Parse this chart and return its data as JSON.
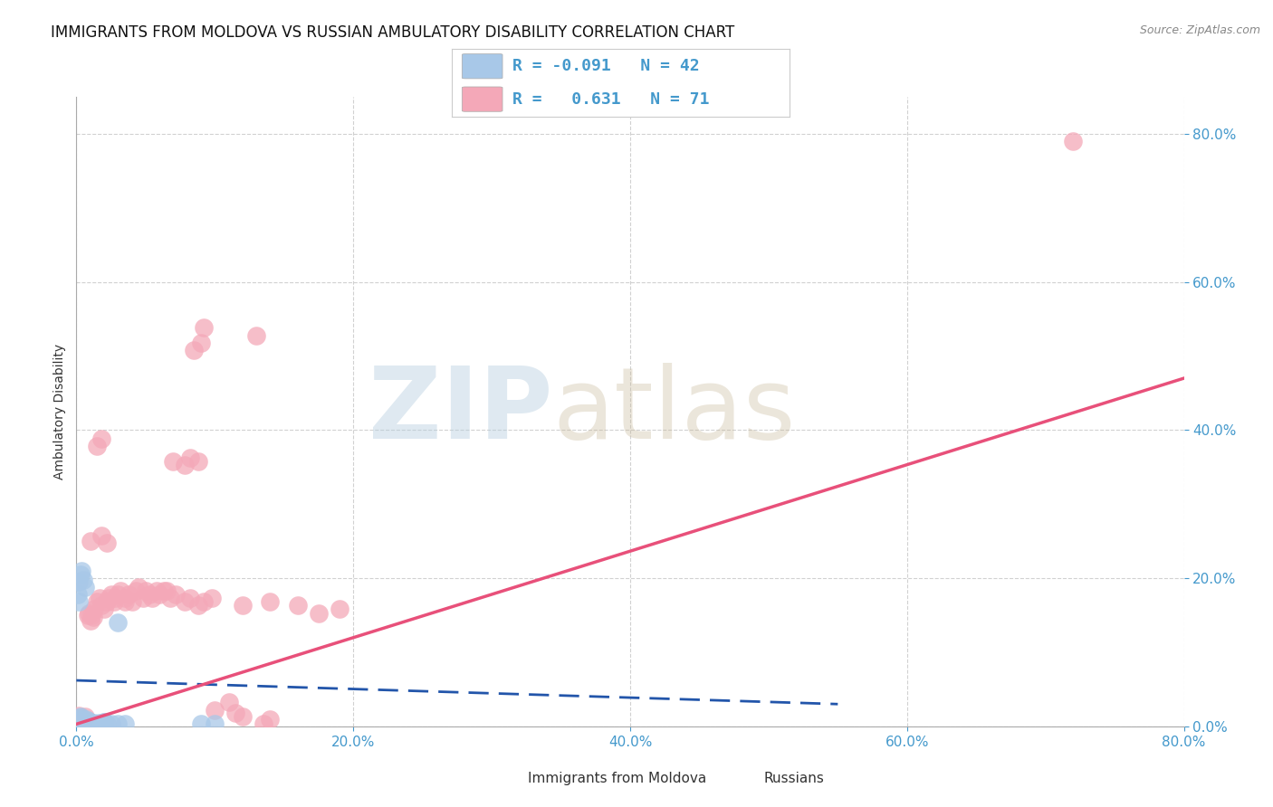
{
  "title": "IMMIGRANTS FROM MOLDOVA VS RUSSIAN AMBULATORY DISABILITY CORRELATION CHART",
  "source": "Source: ZipAtlas.com",
  "ylabel": "Ambulatory Disability",
  "xlim": [
    0.0,
    0.8
  ],
  "ylim": [
    0.0,
    0.85
  ],
  "yticks": [
    0.0,
    0.2,
    0.4,
    0.6,
    0.8
  ],
  "xticks": [
    0.0,
    0.2,
    0.4,
    0.6,
    0.8
  ],
  "legend_r_moldova": "-0.091",
  "legend_n_moldova": "42",
  "legend_r_russian": "0.631",
  "legend_n_russian": "71",
  "moldova_color": "#a8c8e8",
  "russian_color": "#f4a8b8",
  "moldova_line_color": "#2255aa",
  "russian_line_color": "#e8507a",
  "moldova_scatter": [
    [
      0.002,
      0.005
    ],
    [
      0.003,
      0.008
    ],
    [
      0.002,
      0.01
    ],
    [
      0.004,
      0.01
    ],
    [
      0.003,
      0.013
    ],
    [
      0.003,
      0.012
    ],
    [
      0.001,
      0.007
    ],
    [
      0.005,
      0.006
    ],
    [
      0.006,
      0.005
    ],
    [
      0.003,
      0.004
    ],
    [
      0.004,
      0.003
    ],
    [
      0.002,
      0.003
    ],
    [
      0.006,
      0.005
    ],
    [
      0.007,
      0.004
    ],
    [
      0.008,
      0.005
    ],
    [
      0.009,
      0.004
    ],
    [
      0.01,
      0.004
    ],
    [
      0.011,
      0.005
    ],
    [
      0.012,
      0.005
    ],
    [
      0.014,
      0.004
    ],
    [
      0.016,
      0.005
    ],
    [
      0.02,
      0.006
    ],
    [
      0.022,
      0.004
    ],
    [
      0.025,
      0.003
    ],
    [
      0.03,
      0.003
    ],
    [
      0.035,
      0.004
    ],
    [
      0.002,
      0.195
    ],
    [
      0.003,
      0.205
    ],
    [
      0.004,
      0.21
    ],
    [
      0.005,
      0.198
    ],
    [
      0.006,
      0.188
    ],
    [
      0.001,
      0.178
    ],
    [
      0.002,
      0.168
    ],
    [
      0.007,
      0.009
    ],
    [
      0.009,
      0.007
    ],
    [
      0.011,
      0.005
    ],
    [
      0.02,
      0.006
    ],
    [
      0.03,
      0.14
    ],
    [
      0.1,
      0.004
    ],
    [
      0.09,
      0.003
    ],
    [
      0.001,
      0.005
    ],
    [
      0.001,
      0.003
    ]
  ],
  "russian_scatter": [
    [
      0.002,
      0.014
    ],
    [
      0.003,
      0.01
    ],
    [
      0.004,
      0.011
    ],
    [
      0.005,
      0.008
    ],
    [
      0.006,
      0.013
    ],
    [
      0.008,
      0.15
    ],
    [
      0.009,
      0.153
    ],
    [
      0.01,
      0.143
    ],
    [
      0.011,
      0.15
    ],
    [
      0.012,
      0.147
    ],
    [
      0.013,
      0.158
    ],
    [
      0.015,
      0.168
    ],
    [
      0.017,
      0.173
    ],
    [
      0.018,
      0.163
    ],
    [
      0.02,
      0.158
    ],
    [
      0.022,
      0.168
    ],
    [
      0.023,
      0.173
    ],
    [
      0.025,
      0.178
    ],
    [
      0.027,
      0.168
    ],
    [
      0.028,
      0.173
    ],
    [
      0.03,
      0.178
    ],
    [
      0.032,
      0.183
    ],
    [
      0.035,
      0.173
    ],
    [
      0.038,
      0.178
    ],
    [
      0.04,
      0.168
    ],
    [
      0.043,
      0.183
    ],
    [
      0.045,
      0.188
    ],
    [
      0.048,
      0.173
    ],
    [
      0.05,
      0.183
    ],
    [
      0.053,
      0.178
    ],
    [
      0.055,
      0.173
    ],
    [
      0.058,
      0.183
    ],
    [
      0.06,
      0.178
    ],
    [
      0.063,
      0.183
    ],
    [
      0.065,
      0.183
    ],
    [
      0.068,
      0.173
    ],
    [
      0.072,
      0.178
    ],
    [
      0.078,
      0.168
    ],
    [
      0.082,
      0.173
    ],
    [
      0.088,
      0.163
    ],
    [
      0.092,
      0.168
    ],
    [
      0.098,
      0.173
    ],
    [
      0.01,
      0.25
    ],
    [
      0.018,
      0.258
    ],
    [
      0.022,
      0.248
    ],
    [
      0.085,
      0.508
    ],
    [
      0.09,
      0.518
    ],
    [
      0.13,
      0.528
    ],
    [
      0.07,
      0.358
    ],
    [
      0.078,
      0.353
    ],
    [
      0.082,
      0.363
    ],
    [
      0.088,
      0.358
    ],
    [
      0.015,
      0.378
    ],
    [
      0.018,
      0.388
    ],
    [
      0.092,
      0.538
    ],
    [
      0.72,
      0.79
    ],
    [
      0.035,
      0.168
    ],
    [
      0.12,
      0.163
    ],
    [
      0.14,
      0.168
    ],
    [
      0.16,
      0.163
    ],
    [
      0.175,
      0.153
    ],
    [
      0.19,
      0.158
    ],
    [
      0.001,
      0.004
    ],
    [
      0.002,
      0.007
    ],
    [
      0.003,
      0.004
    ],
    [
      0.1,
      0.022
    ],
    [
      0.11,
      0.033
    ],
    [
      0.115,
      0.018
    ],
    [
      0.12,
      0.013
    ],
    [
      0.135,
      0.004
    ],
    [
      0.14,
      0.009
    ]
  ],
  "background_color": "#ffffff",
  "grid_color": "#cccccc",
  "title_fontsize": 12,
  "axis_label_fontsize": 10,
  "tick_fontsize": 11,
  "tick_color": "#4499cc",
  "mol_line_x0": 0.0,
  "mol_line_y0": 0.062,
  "mol_line_x1": 0.55,
  "mol_line_y1": 0.03,
  "rus_line_x0": 0.0,
  "rus_line_y0": 0.003,
  "rus_line_x1": 0.8,
  "rus_line_y1": 0.47
}
